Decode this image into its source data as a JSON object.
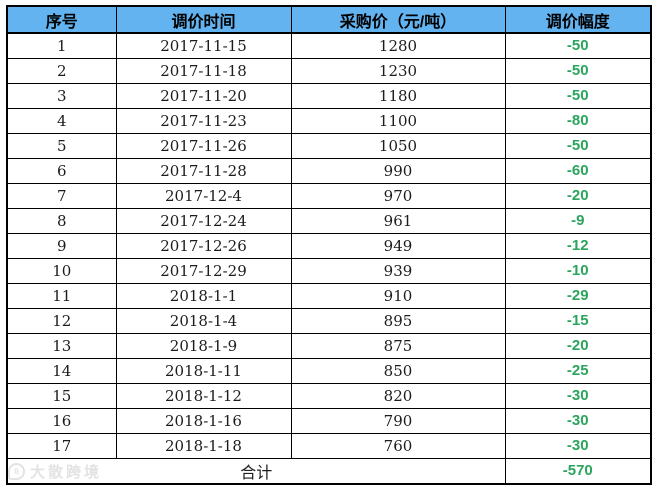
{
  "chart_data": {
    "type": "table",
    "columns": [
      "序号",
      "调价时间",
      "采购价（元/吨）",
      "调价幅度"
    ],
    "rows": [
      [
        "1",
        "2017-11-15",
        "1280",
        "-50"
      ],
      [
        "2",
        "2017-11-18",
        "1230",
        "-50"
      ],
      [
        "3",
        "2017-11-20",
        "1180",
        "-50"
      ],
      [
        "4",
        "2017-11-23",
        "1100",
        "-80"
      ],
      [
        "5",
        "2017-11-26",
        "1050",
        "-50"
      ],
      [
        "6",
        "2017-11-28",
        "990",
        "-60"
      ],
      [
        "7",
        "2017-12-4",
        "970",
        "-20"
      ],
      [
        "8",
        "2017-12-24",
        "961",
        "-9"
      ],
      [
        "9",
        "2017-12-26",
        "949",
        "-12"
      ],
      [
        "10",
        "2017-12-29",
        "939",
        "-10"
      ],
      [
        "11",
        "2018-1-1",
        "910",
        "-29"
      ],
      [
        "12",
        "2018-1-4",
        "895",
        "-15"
      ],
      [
        "13",
        "2018-1-9",
        "875",
        "-20"
      ],
      [
        "14",
        "2018-1-11",
        "850",
        "-25"
      ],
      [
        "15",
        "2018-1-12",
        "820",
        "-30"
      ],
      [
        "16",
        "2018-1-16",
        "790",
        "-30"
      ],
      [
        "17",
        "2018-1-18",
        "760",
        "-30"
      ]
    ],
    "total_row": {
      "label": "合计",
      "change_total": "-570"
    },
    "layout": {
      "grid": "on",
      "header_row": true,
      "total_row_merged_cols": 3
    }
  },
  "watermark": {
    "text": "大散跨境"
  },
  "colors": {
    "header_bg": "#63B3F0",
    "change_green": "#2BA55E",
    "border": "#000000",
    "watermark_gray": "#E3E3E3"
  }
}
